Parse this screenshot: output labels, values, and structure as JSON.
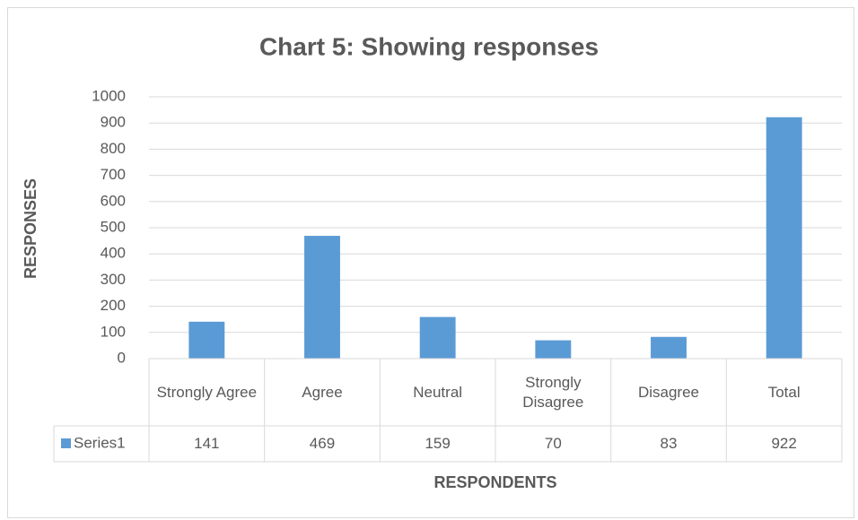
{
  "chart_data": {
    "type": "bar",
    "title": "Chart 5: Showing responses",
    "x_label": "RESPONDENTS",
    "y_label": "RESPONSES",
    "categories": [
      "Strongly Agree",
      "Agree",
      "Neutral",
      "Strongly Disagree",
      "Disagree",
      "Total"
    ],
    "series": [
      {
        "name": "Series1",
        "color": "#5b9bd5",
        "values": [
          141,
          469,
          159,
          70,
          83,
          922
        ]
      }
    ],
    "ylim": [
      0,
      1000
    ],
    "yticks": [
      0,
      100,
      200,
      300,
      400,
      500,
      600,
      700,
      800,
      900,
      1000
    ],
    "grid": true,
    "data_table": true
  }
}
